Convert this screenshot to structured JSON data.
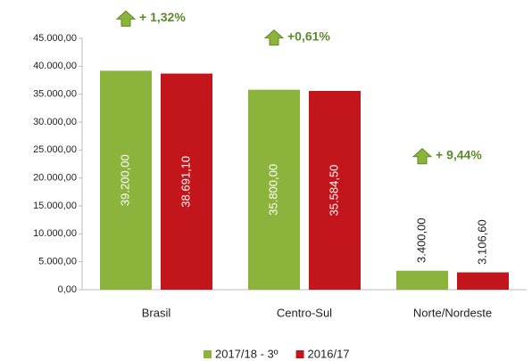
{
  "chart_data": {
    "type": "bar",
    "categories": [
      "Brasil",
      "Centro-Sul",
      "Norte/Nordeste"
    ],
    "series": [
      {
        "name": "2017/18 - 3º",
        "color": "#8cb43c",
        "values": [
          39200,
          35800,
          3400
        ],
        "value_labels": [
          "39.200,00",
          "35.800,00",
          "3.400,00"
        ]
      },
      {
        "name": "2016/17",
        "color": "#c3161c",
        "values": [
          38691.1,
          35584.5,
          3106.6
        ],
        "value_labels": [
          "38.691,10",
          "35.584,50",
          "3.106,60"
        ]
      }
    ],
    "annotations": [
      "+ 1,32%",
      "+0,61%",
      "+ 9,44%"
    ],
    "ylim": [
      0,
      45000
    ],
    "yticks": [
      {
        "value": 0,
        "label": "0,00"
      },
      {
        "value": 5000,
        "label": "5.000,00"
      },
      {
        "value": 10000,
        "label": "10.000,00"
      },
      {
        "value": 15000,
        "label": "15.000,00"
      },
      {
        "value": 20000,
        "label": "20.000,00"
      },
      {
        "value": 25000,
        "label": "25.000,00"
      },
      {
        "value": 30000,
        "label": "30.000,00"
      },
      {
        "value": 35000,
        "label": "35.000,00"
      },
      {
        "value": 40000,
        "label": "40.000,00"
      },
      {
        "value": 45000,
        "label": "45.000,00"
      }
    ],
    "grid": false
  }
}
